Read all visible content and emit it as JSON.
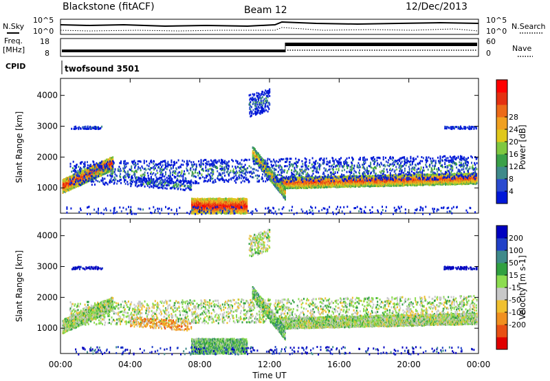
{
  "header": {
    "radar": "Blackstone (fitACF)",
    "beam": "Beam 12",
    "date": "12/Dec/2013"
  },
  "noise_panel": {
    "left_label": "N.Sky",
    "right_label": "N.Search",
    "left_ticks": [
      "10^5",
      "10^0"
    ],
    "right_ticks": [
      "10^5",
      "10^0"
    ]
  },
  "freq_panel": {
    "left_label_1": "Freq.",
    "left_label_2": "[MHz]",
    "left_ticks": [
      "18",
      "8"
    ],
    "right_label": "Nave",
    "right_ticks": [
      "60",
      "0"
    ]
  },
  "cpid": {
    "label": "CPID",
    "program": "twofsound 3501"
  },
  "chart_data": [
    {
      "type": "heatmap",
      "name": "power",
      "ylabel": "Slant Range [km]",
      "ylim": [
        180,
        4550
      ],
      "yticks": [
        "1000",
        "2000",
        "3000",
        "4000"
      ],
      "xlim_hours": [
        0,
        24
      ],
      "colorbar_label": "Power [dB]",
      "colorbar_ticks": [
        "4",
        "8",
        "12",
        "16",
        "20",
        "24",
        "28"
      ],
      "colorbar_colors": [
        "#0018d8",
        "#2a4bd0",
        "#3f8a8a",
        "#3aa048",
        "#7fc840",
        "#e0c81c",
        "#f0a020",
        "#ec6a18",
        "#e43010",
        "#ff0000"
      ]
    },
    {
      "type": "heatmap",
      "name": "velocity",
      "ylabel": "Slant Range [km]",
      "ylim": [
        180,
        4550
      ],
      "yticks": [
        "1000",
        "2000",
        "3000",
        "4000"
      ],
      "xlim_hours": [
        0,
        24
      ],
      "colorbar_label": "Velocity [m s-1]",
      "colorbar_ticks": [
        "200",
        "100",
        "50",
        "15",
        "-15",
        "-50",
        "-100",
        "-200"
      ],
      "colorbar_colors": [
        "#0000c0",
        "#2040c8",
        "#3f8a8a",
        "#30a040",
        "#8cdc50",
        "#c8c8c8",
        "#f0c030",
        "#f09020",
        "#e85014",
        "#e00000"
      ]
    }
  ],
  "x_axis": {
    "ticks": [
      "00:00",
      "04:00",
      "08:00",
      "12:00",
      "16:00",
      "20:00",
      "00:00"
    ],
    "label": "Time UT"
  }
}
